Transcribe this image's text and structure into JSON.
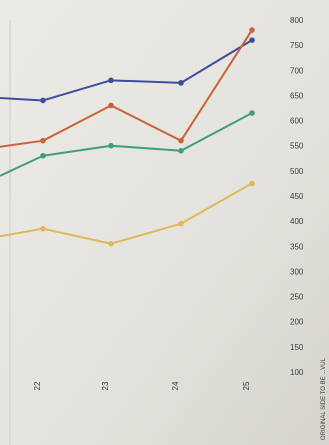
{
  "chart_data": {
    "type": "line",
    "x": [
      "22",
      "23",
      "24",
      "25"
    ],
    "y_ticks": [
      100,
      150,
      200,
      250,
      300,
      350,
      400,
      450,
      500,
      550,
      600,
      650,
      700,
      750,
      800
    ],
    "ylim": [
      100,
      800
    ],
    "y_axis_side": "right",
    "grid": false,
    "series": [
      {
        "color": "#3d4e9e",
        "values": [
          640,
          680,
          675,
          760
        ]
      },
      {
        "color": "#c8643a",
        "values": [
          560,
          630,
          560,
          780
        ]
      },
      {
        "color": "#3e9f80",
        "values": [
          530,
          550,
          540,
          615
        ]
      },
      {
        "color": "#e2b75c",
        "values": [
          385,
          355,
          395,
          475
        ]
      }
    ],
    "series_left_start": [
      645,
      548,
      490,
      370
    ]
  },
  "margin_text": "ORIGINAL SIDE TO BE ...VUL"
}
